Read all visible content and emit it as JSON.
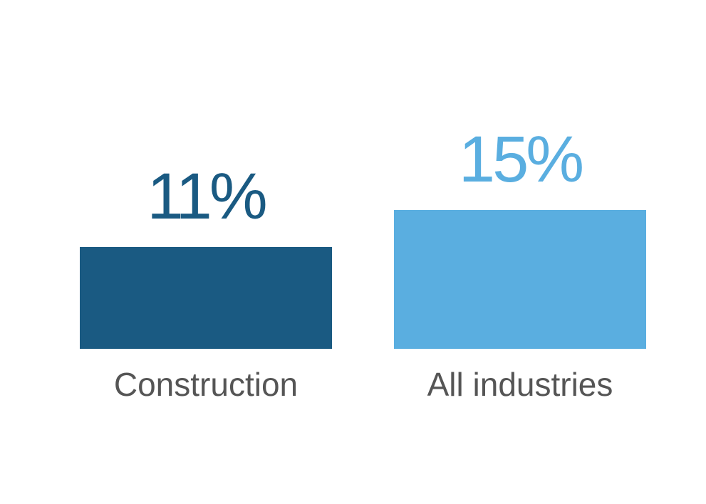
{
  "chart_data": {
    "type": "bar",
    "categories": [
      "Construction",
      "All industries"
    ],
    "values": [
      11,
      15
    ],
    "data_labels": [
      "11%",
      "15%"
    ],
    "colors": [
      "#1a5a82",
      "#5aaee0"
    ],
    "label_color": "#555555",
    "grid": false,
    "ylim": [
      0,
      15
    ]
  }
}
